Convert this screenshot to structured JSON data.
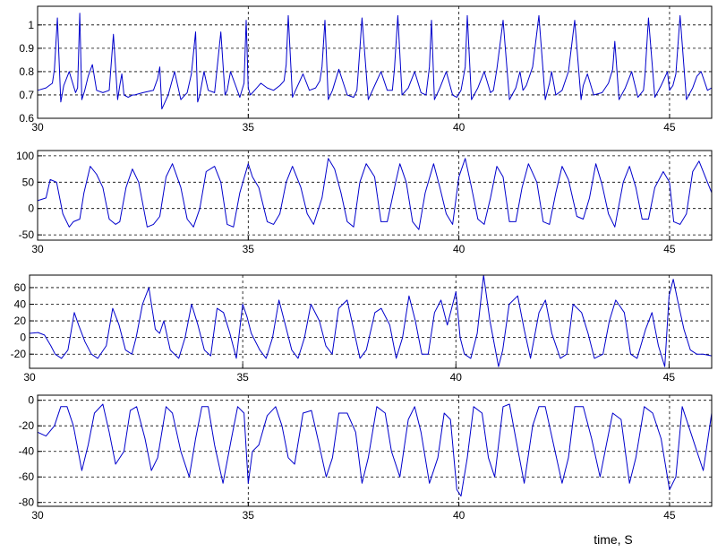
{
  "figure": {
    "xlabel": "time, S",
    "line_color": "#0000cc",
    "axis_color": "#000000",
    "grid_color": "#000000"
  },
  "chart_data": [
    {
      "type": "line",
      "title": "",
      "xlabel": "",
      "ylabel": "",
      "xlim": [
        30,
        46
      ],
      "ylim": [
        0.6,
        1.08
      ],
      "xticks": [
        30,
        35,
        40,
        45
      ],
      "yticks": [
        0.6,
        0.7,
        0.8,
        0.9,
        1
      ],
      "ytick_labels": [
        "0.6",
        "0.7",
        "0.8",
        "0.9",
        "1"
      ],
      "xtick_labels": [
        "30",
        "35",
        "40",
        "45"
      ],
      "grid": true,
      "series": [
        {
          "color": "#0000cc",
          "x": [
            30.0,
            30.2,
            30.35,
            30.4,
            30.47,
            30.55,
            30.62,
            30.75,
            30.9,
            30.95,
            31.0,
            31.05,
            31.12,
            31.2,
            31.3,
            31.4,
            31.55,
            31.7,
            31.8,
            31.9,
            31.95,
            32.0,
            32.05,
            32.15,
            32.25,
            32.3,
            32.5,
            32.75,
            32.85,
            32.9,
            32.95,
            33.0,
            33.1,
            33.25,
            33.4,
            33.55,
            33.65,
            33.75,
            33.8,
            33.85,
            33.95,
            34.05,
            34.2,
            34.35,
            34.45,
            34.5,
            34.58,
            34.7,
            34.8,
            34.9,
            34.95,
            35.0,
            35.05,
            35.15,
            35.3,
            35.45,
            35.6,
            35.75,
            35.85,
            35.9,
            35.95,
            36.05,
            36.15,
            36.3,
            36.45,
            36.6,
            36.7,
            36.75,
            36.82,
            36.9,
            37.0,
            37.15,
            37.35,
            37.5,
            37.58,
            37.62,
            37.7,
            37.85,
            38.0,
            38.15,
            38.3,
            38.42,
            38.47,
            38.55,
            38.65,
            38.8,
            38.95,
            39.1,
            39.22,
            39.3,
            39.35,
            39.42,
            39.55,
            39.7,
            39.85,
            39.95,
            40.05,
            40.15,
            40.2,
            40.3,
            40.45,
            40.6,
            40.75,
            40.82,
            40.9,
            41.05,
            41.2,
            41.35,
            41.45,
            41.52,
            41.6,
            41.75,
            41.9,
            42.05,
            42.15,
            42.2,
            42.3,
            42.45,
            42.6,
            42.75,
            42.9,
            42.95,
            43.05,
            43.2,
            43.4,
            43.55,
            43.65,
            43.7,
            43.8,
            43.95,
            44.1,
            44.25,
            44.38,
            44.42,
            44.5,
            44.65,
            44.8,
            44.95,
            45.0,
            45.08,
            45.15,
            45.25,
            45.4,
            45.55,
            45.65,
            45.75,
            45.9,
            46.0
          ],
          "y": [
            0.72,
            0.73,
            0.75,
            0.81,
            1.03,
            0.67,
            0.74,
            0.8,
            0.71,
            0.73,
            1.05,
            0.68,
            0.72,
            0.78,
            0.83,
            0.72,
            0.71,
            0.72,
            0.96,
            0.68,
            0.74,
            0.79,
            0.7,
            0.69,
            0.7,
            0.7,
            0.71,
            0.72,
            0.77,
            0.82,
            0.64,
            0.66,
            0.7,
            0.8,
            0.68,
            0.71,
            0.79,
            0.97,
            0.67,
            0.7,
            0.8,
            0.72,
            0.71,
            0.97,
            0.7,
            0.72,
            0.8,
            0.74,
            0.69,
            0.75,
            1.02,
            0.73,
            0.7,
            0.72,
            0.75,
            0.73,
            0.72,
            0.74,
            0.76,
            0.83,
            1.04,
            0.69,
            0.73,
            0.79,
            0.72,
            0.73,
            0.76,
            0.82,
            1.02,
            0.68,
            0.72,
            0.81,
            0.7,
            0.69,
            0.72,
            0.82,
            1.03,
            0.68,
            0.74,
            0.8,
            0.72,
            0.72,
            0.81,
            1.04,
            0.7,
            0.73,
            0.8,
            0.71,
            0.7,
            0.82,
            1.02,
            0.68,
            0.73,
            0.8,
            0.7,
            0.69,
            0.72,
            0.82,
            1.04,
            0.68,
            0.73,
            0.8,
            0.71,
            0.72,
            0.81,
            1.02,
            0.68,
            0.73,
            0.8,
            0.72,
            0.74,
            0.82,
            1.04,
            0.68,
            0.75,
            0.8,
            0.7,
            0.72,
            0.8,
            1.02,
            0.68,
            0.74,
            0.79,
            0.7,
            0.71,
            0.75,
            0.81,
            0.93,
            0.68,
            0.73,
            0.8,
            0.69,
            0.72,
            0.79,
            1.03,
            0.69,
            0.74,
            0.8,
            0.72,
            0.74,
            0.79,
            1.04,
            0.68,
            0.73,
            0.78,
            0.8,
            0.72,
            0.73
          ]
        }
      ]
    },
    {
      "type": "line",
      "title": "",
      "xlabel": "",
      "ylabel": "",
      "xlim": [
        30,
        46
      ],
      "ylim": [
        -60,
        110
      ],
      "xticks": [
        30,
        35,
        40,
        45
      ],
      "yticks": [
        -50,
        0,
        50,
        100
      ],
      "ytick_labels": [
        "-50",
        "0",
        "50",
        "100"
      ],
      "xtick_labels": [
        "30",
        "35",
        "40",
        "45"
      ],
      "grid": true,
      "series": [
        {
          "color": "#0000cc",
          "x": [
            30.0,
            30.2,
            30.3,
            30.45,
            30.6,
            30.75,
            30.85,
            31.0,
            31.1,
            31.25,
            31.4,
            31.55,
            31.7,
            31.85,
            31.95,
            32.1,
            32.25,
            32.4,
            32.6,
            32.75,
            32.9,
            33.05,
            33.2,
            33.4,
            33.55,
            33.7,
            33.85,
            34.0,
            34.2,
            34.35,
            34.5,
            34.65,
            34.8,
            35.0,
            35.1,
            35.25,
            35.45,
            35.6,
            35.75,
            35.9,
            36.05,
            36.25,
            36.4,
            36.55,
            36.75,
            36.9,
            37.05,
            37.2,
            37.35,
            37.5,
            37.65,
            37.8,
            38.0,
            38.15,
            38.3,
            38.5,
            38.6,
            38.75,
            38.9,
            39.05,
            39.2,
            39.4,
            39.55,
            39.7,
            39.85,
            40.0,
            40.15,
            40.3,
            40.45,
            40.6,
            40.75,
            40.9,
            41.05,
            41.2,
            41.35,
            41.5,
            41.65,
            41.85,
            42.0,
            42.15,
            42.3,
            42.45,
            42.6,
            42.8,
            42.95,
            43.1,
            43.25,
            43.4,
            43.55,
            43.7,
            43.9,
            44.05,
            44.2,
            44.35,
            44.5,
            44.65,
            44.85,
            45.0,
            45.1,
            45.25,
            45.4,
            45.55,
            45.7,
            45.85,
            46.0
          ],
          "y": [
            15,
            20,
            55,
            50,
            -10,
            -35,
            -25,
            -20,
            30,
            80,
            65,
            40,
            -20,
            -30,
            -25,
            40,
            75,
            50,
            -35,
            -30,
            -15,
            60,
            85,
            40,
            -20,
            -35,
            0,
            70,
            80,
            50,
            -30,
            -35,
            30,
            85,
            60,
            40,
            -25,
            -30,
            -10,
            50,
            80,
            40,
            -10,
            -30,
            20,
            95,
            75,
            30,
            -25,
            -35,
            50,
            85,
            60,
            -25,
            -25,
            50,
            85,
            50,
            -25,
            -40,
            30,
            85,
            40,
            -10,
            -30,
            60,
            95,
            40,
            -20,
            -30,
            20,
            80,
            60,
            -25,
            -25,
            40,
            85,
            50,
            -25,
            -30,
            30,
            80,
            55,
            -15,
            -20,
            20,
            85,
            45,
            -10,
            -35,
            50,
            80,
            40,
            -20,
            -20,
            40,
            70,
            50,
            -25,
            -30,
            -10,
            70,
            90,
            60,
            30
          ]
        }
      ]
    },
    {
      "type": "line",
      "title": "",
      "xlabel": "",
      "ylabel": "",
      "xlim": [
        30,
        46
      ],
      "ylim": [
        -37,
        75
      ],
      "xticks": [
        30,
        35,
        40,
        45
      ],
      "yticks": [
        -20,
        0,
        20,
        40,
        60
      ],
      "ytick_labels": [
        "-20",
        "0",
        "20",
        "40",
        "60"
      ],
      "xtick_labels": [
        "30",
        "35",
        "40",
        "45"
      ],
      "grid": true,
      "series": [
        {
          "color": "#0000cc",
          "x": [
            30.0,
            30.2,
            30.35,
            30.5,
            30.6,
            30.75,
            30.9,
            31.05,
            31.15,
            31.3,
            31.45,
            31.6,
            31.8,
            31.95,
            32.1,
            32.25,
            32.4,
            32.5,
            32.65,
            32.8,
            32.95,
            33.05,
            33.15,
            33.3,
            33.5,
            33.65,
            33.8,
            33.95,
            34.1,
            34.25,
            34.4,
            34.55,
            34.7,
            34.85,
            35.0,
            35.1,
            35.2,
            35.4,
            35.55,
            35.7,
            35.85,
            36.0,
            36.15,
            36.3,
            36.45,
            36.6,
            36.8,
            36.95,
            37.1,
            37.25,
            37.45,
            37.6,
            37.75,
            37.9,
            38.1,
            38.25,
            38.45,
            38.6,
            38.75,
            38.9,
            39.05,
            39.2,
            39.35,
            39.5,
            39.65,
            39.8,
            40.0,
            40.1,
            40.2,
            40.35,
            40.5,
            40.65,
            40.8,
            41.0,
            41.1,
            41.25,
            41.45,
            41.6,
            41.75,
            41.95,
            42.1,
            42.25,
            42.45,
            42.6,
            42.75,
            42.95,
            43.1,
            43.25,
            43.45,
            43.6,
            43.75,
            43.95,
            44.1,
            44.25,
            44.45,
            44.6,
            44.75,
            44.9,
            45.0,
            45.1,
            45.2,
            45.35,
            45.5,
            45.65,
            45.8,
            46.0
          ],
          "y": [
            5,
            6,
            3,
            -10,
            -20,
            -25,
            -15,
            30,
            15,
            -5,
            -20,
            -25,
            -10,
            35,
            15,
            -15,
            -20,
            0,
            40,
            60,
            10,
            5,
            20,
            -15,
            -25,
            0,
            40,
            15,
            -15,
            -22,
            35,
            30,
            5,
            -25,
            40,
            25,
            5,
            -15,
            -25,
            0,
            45,
            15,
            -15,
            -25,
            0,
            40,
            20,
            -10,
            -20,
            35,
            45,
            10,
            -25,
            -15,
            30,
            35,
            15,
            -25,
            0,
            50,
            20,
            -20,
            -20,
            30,
            45,
            15,
            55,
            0,
            -20,
            -25,
            5,
            75,
            20,
            -35,
            -15,
            40,
            50,
            10,
            -25,
            30,
            45,
            5,
            -25,
            -20,
            40,
            30,
            5,
            -25,
            -20,
            20,
            45,
            30,
            -20,
            -25,
            10,
            30,
            -10,
            -35,
            50,
            70,
            45,
            10,
            -15,
            -20,
            -20,
            -22
          ]
        }
      ]
    },
    {
      "type": "line",
      "title": "",
      "xlabel": "",
      "ylabel": "",
      "xlim": [
        30,
        46
      ],
      "ylim": [
        -83,
        4
      ],
      "xticks": [
        30,
        35,
        40,
        45
      ],
      "yticks": [
        -80,
        -60,
        -40,
        -20,
        0
      ],
      "ytick_labels": [
        "-80",
        "-60",
        "-40",
        "-20",
        "0"
      ],
      "xtick_labels": [
        "30",
        "35",
        "40",
        "45"
      ],
      "grid": true,
      "series": [
        {
          "color": "#0000cc",
          "x": [
            30.0,
            30.2,
            30.4,
            30.55,
            30.7,
            30.85,
            31.05,
            31.2,
            31.35,
            31.55,
            31.7,
            31.85,
            32.05,
            32.2,
            32.35,
            32.55,
            32.7,
            32.85,
            33.05,
            33.2,
            33.4,
            33.6,
            33.75,
            33.9,
            34.05,
            34.2,
            34.4,
            34.6,
            34.75,
            34.9,
            35.0,
            35.1,
            35.25,
            35.45,
            35.65,
            35.8,
            35.95,
            36.1,
            36.3,
            36.5,
            36.65,
            36.85,
            37.0,
            37.15,
            37.35,
            37.55,
            37.7,
            37.85,
            38.05,
            38.25,
            38.4,
            38.6,
            38.8,
            38.95,
            39.1,
            39.3,
            39.5,
            39.65,
            39.8,
            39.95,
            40.05,
            40.2,
            40.35,
            40.55,
            40.7,
            40.85,
            41.05,
            41.2,
            41.35,
            41.55,
            41.75,
            41.9,
            42.05,
            42.25,
            42.45,
            42.6,
            42.75,
            42.95,
            43.15,
            43.35,
            43.5,
            43.65,
            43.85,
            44.05,
            44.2,
            44.4,
            44.6,
            44.8,
            45.0,
            45.15,
            45.3,
            45.5,
            45.65,
            45.8,
            46.0
          ],
          "y": [
            -25,
            -28,
            -20,
            -5,
            -5,
            -20,
            -55,
            -35,
            -10,
            -3,
            -25,
            -50,
            -40,
            -8,
            -5,
            -30,
            -55,
            -45,
            -5,
            -10,
            -40,
            -60,
            -30,
            -5,
            -5,
            -35,
            -65,
            -30,
            -5,
            -10,
            -65,
            -40,
            -35,
            -12,
            -5,
            -20,
            -45,
            -50,
            -10,
            -8,
            -30,
            -60,
            -45,
            -10,
            -10,
            -25,
            -65,
            -45,
            -5,
            -10,
            -40,
            -60,
            -15,
            -5,
            -25,
            -65,
            -45,
            -10,
            -15,
            -70,
            -75,
            -45,
            -5,
            -10,
            -45,
            -60,
            -5,
            -3,
            -30,
            -65,
            -20,
            -5,
            -5,
            -35,
            -65,
            -45,
            -5,
            -5,
            -30,
            -60,
            -35,
            -10,
            -15,
            -65,
            -45,
            -5,
            -10,
            -30,
            -70,
            -60,
            -5,
            -25,
            -40,
            -55,
            -10
          ]
        }
      ]
    }
  ]
}
